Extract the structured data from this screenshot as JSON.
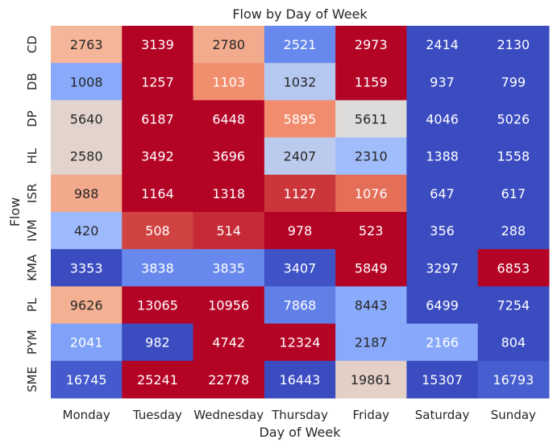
{
  "chart_data": {
    "type": "heatmap",
    "title": "Flow by Day of Week",
    "xlabel": "Day of Week",
    "ylabel": "Flow",
    "columns": [
      "Monday",
      "Tuesday",
      "Wednesday",
      "Thursday",
      "Friday",
      "Saturday",
      "Sunday"
    ],
    "rows": [
      "CD",
      "DB",
      "DP",
      "HL",
      "ISR",
      "IVM",
      "KMA",
      "PL",
      "PYM",
      "SME"
    ],
    "values": [
      [
        2763,
        3139,
        2780,
        2521,
        2973,
        2414,
        2130
      ],
      [
        1008,
        1257,
        1103,
        1032,
        1159,
        937,
        799
      ],
      [
        5640,
        6187,
        6448,
        5895,
        5611,
        4046,
        5026
      ],
      [
        2580,
        3492,
        3696,
        2407,
        2310,
        1388,
        1558
      ],
      [
        988,
        1164,
        1318,
        1127,
        1076,
        647,
        617
      ],
      [
        420,
        508,
        514,
        978,
        523,
        356,
        288
      ],
      [
        3353,
        3838,
        3835,
        3407,
        5849,
        3297,
        6853
      ],
      [
        9626,
        13065,
        10956,
        7868,
        8443,
        6499,
        7254
      ],
      [
        2041,
        982,
        4742,
        12324,
        2187,
        2166,
        804
      ],
      [
        16745,
        25241,
        22778,
        16443,
        19861,
        15307,
        16793
      ]
    ],
    "colormap": "coolwarm",
    "normalization": "per-row",
    "grid": false,
    "legend": "none"
  }
}
